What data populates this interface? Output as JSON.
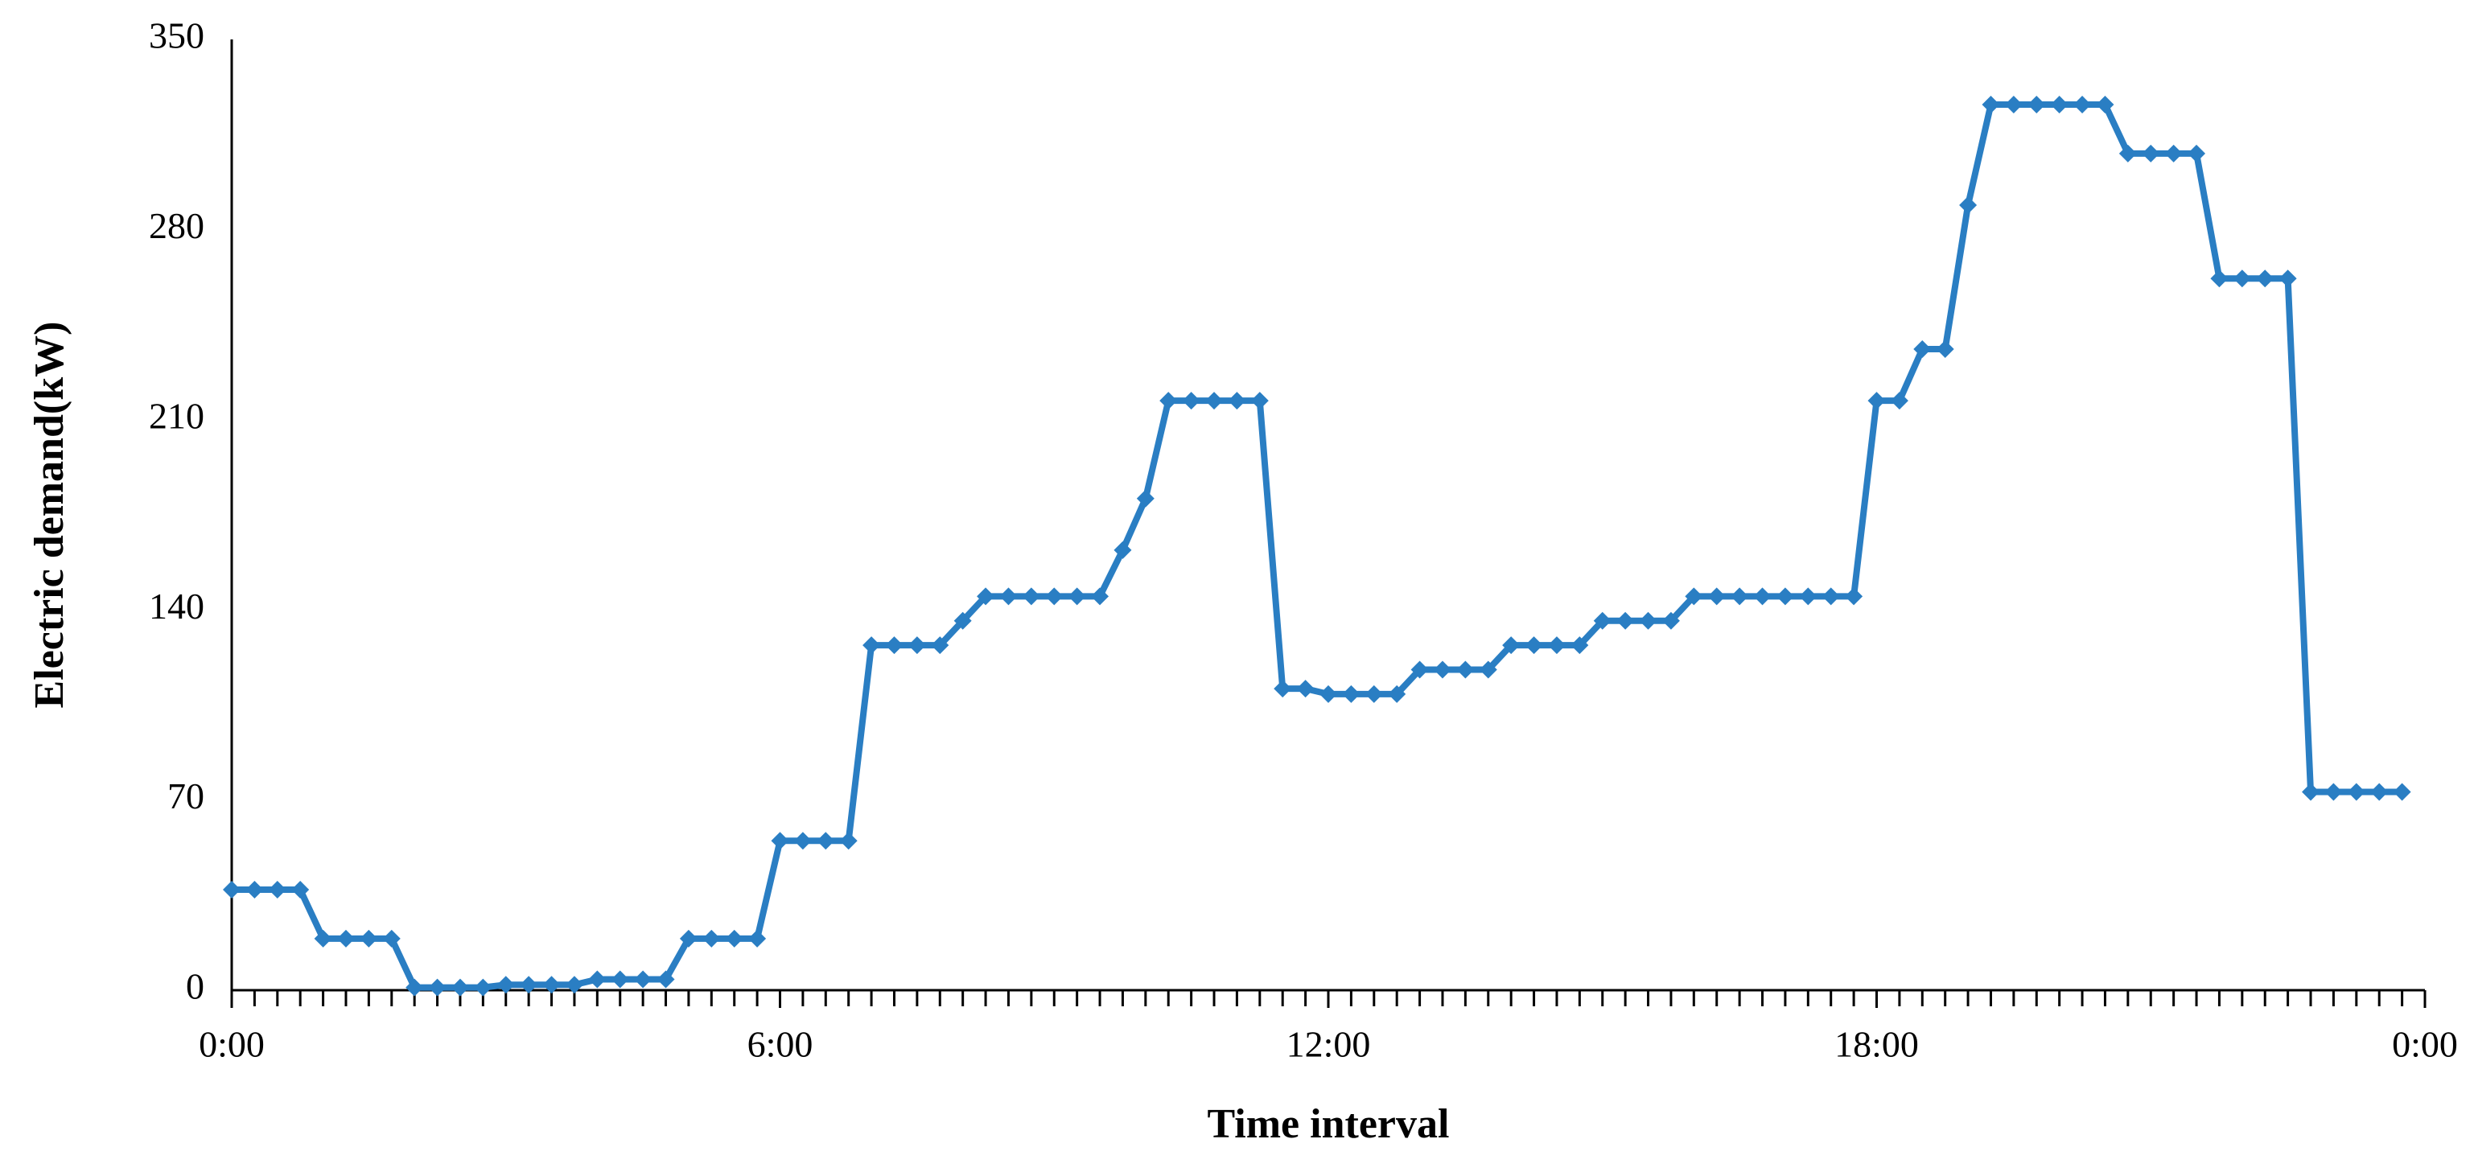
{
  "chart_data": {
    "type": "line",
    "x_label": "Time interval",
    "y_label": "Electric demand(kW)",
    "x": [
      0,
      0.25,
      0.5,
      0.75,
      1,
      1.25,
      1.5,
      1.75,
      2,
      2.25,
      2.5,
      2.75,
      3,
      3.25,
      3.5,
      3.75,
      4,
      4.25,
      4.5,
      4.75,
      5,
      5.25,
      5.5,
      5.75,
      6,
      6.25,
      6.5,
      6.75,
      7,
      7.25,
      7.5,
      7.75,
      8,
      8.25,
      8.5,
      8.75,
      9,
      9.25,
      9.5,
      9.75,
      10,
      10.25,
      10.5,
      10.75,
      11,
      11.25,
      11.5,
      11.75,
      12,
      12.25,
      12.5,
      12.75,
      13,
      13.25,
      13.5,
      13.75,
      14,
      14.25,
      14.5,
      14.75,
      15,
      15.25,
      15.5,
      15.75,
      16,
      16.25,
      16.5,
      16.75,
      17,
      17.25,
      17.5,
      17.75,
      18,
      18.25,
      18.5,
      18.75,
      19,
      19.25,
      19.5,
      19.75,
      20,
      20.25,
      20.5,
      20.75,
      21,
      21.25,
      21.5,
      21.75,
      22,
      22.25,
      22.5,
      22.75,
      23,
      23.25,
      23.5,
      23.75
    ],
    "series": [
      {
        "color": "#2a7ec3",
        "values": [
          37,
          37,
          37,
          37,
          19,
          19,
          19,
          19,
          1,
          1,
          1,
          1,
          2,
          2,
          2,
          2,
          4,
          4,
          4,
          4,
          19,
          19,
          19,
          19,
          55,
          55,
          55,
          55,
          127,
          127,
          127,
          127,
          136,
          145,
          145,
          145,
          145,
          145,
          145,
          162,
          181,
          217,
          217,
          217,
          217,
          217,
          111,
          111,
          109,
          109,
          109,
          109,
          118,
          118,
          118,
          118,
          127,
          127,
          127,
          127,
          136,
          136,
          136,
          136,
          145,
          145,
          145,
          145,
          145,
          145,
          145,
          145,
          217,
          217,
          236,
          236,
          289,
          326,
          326,
          326,
          326,
          326,
          326,
          308,
          308,
          308,
          308,
          262,
          262,
          262,
          262,
          73,
          73,
          73,
          73,
          73
        ]
      }
    ],
    "xlim": [
      0,
      24
    ],
    "xticks": [
      {
        "value": 0,
        "label": "0:00"
      },
      {
        "value": 6,
        "label": "6:00"
      },
      {
        "value": 12,
        "label": "12:00"
      },
      {
        "value": 18,
        "label": "18:00"
      },
      {
        "value": 24,
        "label": "0:00"
      }
    ],
    "ylim": [
      0,
      350
    ],
    "yticks": [
      0,
      70,
      140,
      210,
      280,
      350
    ],
    "grid": false
  }
}
